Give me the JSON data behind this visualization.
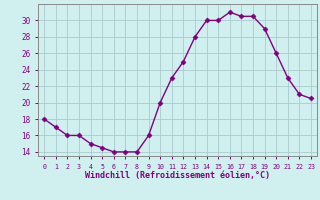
{
  "x": [
    0,
    1,
    2,
    3,
    4,
    5,
    6,
    7,
    8,
    9,
    10,
    11,
    12,
    13,
    14,
    15,
    16,
    17,
    18,
    19,
    20,
    21,
    22,
    23
  ],
  "y": [
    18,
    17,
    16,
    16,
    15,
    14.5,
    14,
    14,
    14,
    16,
    20,
    23,
    25,
    28,
    30,
    30,
    31,
    30.5,
    30.5,
    29,
    26,
    23,
    21,
    20.5
  ],
  "xlabel": "Windchill (Refroidissement éolien,°C)",
  "line_color": "#800080",
  "bg_color": "#d0f0f0",
  "grid_color": "#aacccc",
  "tick_color": "#800080",
  "label_color": "#800080",
  "spine_color": "#888888",
  "ylim": [
    13.5,
    32
  ],
  "yticks": [
    14,
    16,
    18,
    20,
    22,
    24,
    26,
    28,
    30
  ],
  "xtick_labels": [
    "0",
    "1",
    "2",
    "3",
    "4",
    "5",
    "6",
    "7",
    "8",
    "9",
    "10",
    "11",
    "12",
    "13",
    "14",
    "15",
    "16",
    "17",
    "18",
    "19",
    "20",
    "21",
    "22",
    "23"
  ],
  "marker": "D",
  "markersize": 2.5,
  "linewidth": 1.0
}
